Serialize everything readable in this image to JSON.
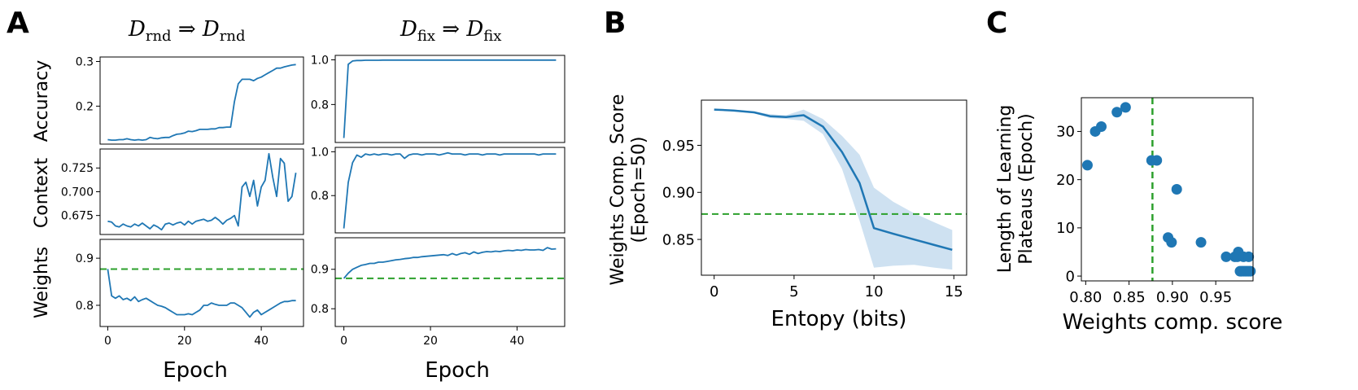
{
  "panels": {
    "A": "A",
    "B": "B",
    "C": "C"
  },
  "titles": {
    "left": {
      "D1": "D",
      "sub1": "rnd",
      "arrow": " ⇒ ",
      "D2": "D",
      "sub2": "rnd"
    },
    "right": {
      "D1": "D",
      "sub1": "fix",
      "arrow": " ⇒ ",
      "D2": "D",
      "sub2": "fix"
    }
  },
  "colors": {
    "line": "#1f77b4",
    "threshold": "#2ca02c",
    "band": "#a6c8e6"
  },
  "chart_data": [
    {
      "id": "A-rnd-accuracy",
      "type": "line",
      "ylabel": "Accuracy",
      "xlim": [
        -2,
        51
      ],
      "ylim": [
        0.115,
        0.31
      ],
      "yticks": [
        0.2,
        0.3
      ],
      "ytick_labels": [
        "0.2",
        "0.3"
      ],
      "xticks": [],
      "x_start": 0,
      "values": [
        0.125,
        0.124,
        0.124,
        0.125,
        0.125,
        0.127,
        0.125,
        0.124,
        0.125,
        0.124,
        0.125,
        0.13,
        0.128,
        0.127,
        0.129,
        0.13,
        0.13,
        0.134,
        0.137,
        0.138,
        0.14,
        0.144,
        0.143,
        0.145,
        0.148,
        0.148,
        0.148,
        0.149,
        0.149,
        0.152,
        0.152,
        0.153,
        0.153,
        0.21,
        0.25,
        0.26,
        0.26,
        0.26,
        0.257,
        0.262,
        0.265,
        0.27,
        0.275,
        0.28,
        0.285,
        0.285,
        0.288,
        0.29,
        0.292,
        0.293
      ]
    },
    {
      "id": "A-rnd-context",
      "type": "line",
      "ylabel": "Context",
      "xlim": [
        -2,
        51
      ],
      "ylim": [
        0.655,
        0.745
      ],
      "yticks": [
        0.675,
        0.7,
        0.725
      ],
      "ytick_labels": [
        "0.675",
        "0.700",
        "0.725"
      ],
      "xticks": [],
      "x_start": 0,
      "values": [
        0.669,
        0.668,
        0.664,
        0.663,
        0.666,
        0.664,
        0.663,
        0.666,
        0.664,
        0.667,
        0.664,
        0.661,
        0.665,
        0.663,
        0.66,
        0.666,
        0.667,
        0.665,
        0.667,
        0.668,
        0.665,
        0.669,
        0.666,
        0.669,
        0.67,
        0.671,
        0.669,
        0.67,
        0.673,
        0.67,
        0.666,
        0.67,
        0.672,
        0.675,
        0.664,
        0.705,
        0.71,
        0.695,
        0.712,
        0.685,
        0.705,
        0.712,
        0.74,
        0.715,
        0.695,
        0.735,
        0.73,
        0.69,
        0.695,
        0.72
      ]
    },
    {
      "id": "A-rnd-weights",
      "type": "line",
      "ylabel": "Weights",
      "xlim": [
        -2,
        51
      ],
      "ylim": [
        0.755,
        0.94
      ],
      "yticks": [
        0.8,
        0.9
      ],
      "ytick_labels": [
        "0.8",
        "0.9"
      ],
      "xticks": [
        0,
        20,
        40
      ],
      "xtick_labels": [
        "0",
        "20",
        "40"
      ],
      "threshold": 0.877,
      "x_start": 0,
      "values": [
        0.877,
        0.82,
        0.815,
        0.82,
        0.812,
        0.815,
        0.81,
        0.818,
        0.808,
        0.812,
        0.815,
        0.81,
        0.805,
        0.8,
        0.798,
        0.795,
        0.79,
        0.785,
        0.78,
        0.78,
        0.78,
        0.782,
        0.78,
        0.785,
        0.79,
        0.8,
        0.8,
        0.805,
        0.802,
        0.8,
        0.8,
        0.8,
        0.805,
        0.805,
        0.8,
        0.795,
        0.785,
        0.775,
        0.785,
        0.79,
        0.78,
        0.785,
        0.79,
        0.795,
        0.8,
        0.805,
        0.808,
        0.808,
        0.81,
        0.81
      ]
    },
    {
      "id": "A-fix-accuracy",
      "type": "line",
      "xlim": [
        -2,
        51
      ],
      "ylim": [
        0.63,
        1.02
      ],
      "yticks": [
        0.8,
        1.0
      ],
      "ytick_labels": [
        "0.8",
        "1.0"
      ],
      "xticks": [],
      "x_start": 0,
      "values": [
        0.65,
        0.98,
        0.995,
        0.997,
        0.997,
        0.998,
        0.998,
        0.998,
        0.998,
        0.999,
        0.999,
        0.999,
        0.999,
        0.999,
        0.999,
        0.999,
        0.999,
        0.999,
        0.999,
        0.999,
        0.999,
        0.999,
        0.999,
        0.999,
        0.999,
        0.999,
        0.999,
        0.999,
        0.999,
        0.999,
        0.999,
        0.999,
        0.999,
        0.999,
        0.999,
        0.999,
        0.999,
        0.999,
        0.999,
        0.999,
        0.999,
        0.999,
        0.999,
        0.999,
        0.999,
        0.999,
        0.999,
        0.999,
        0.999,
        0.999
      ]
    },
    {
      "id": "A-fix-context",
      "type": "line",
      "xlim": [
        -2,
        51
      ],
      "ylim": [
        0.63,
        1.02
      ],
      "yticks": [
        0.8,
        1.0
      ],
      "ytick_labels": [
        "0.8",
        "1.0"
      ],
      "xticks": [],
      "x_start": 0,
      "values": [
        0.65,
        0.86,
        0.95,
        0.985,
        0.975,
        0.99,
        0.985,
        0.99,
        0.985,
        0.99,
        0.99,
        0.985,
        0.99,
        0.99,
        0.97,
        0.985,
        0.99,
        0.99,
        0.985,
        0.99,
        0.99,
        0.99,
        0.985,
        0.99,
        0.995,
        0.99,
        0.99,
        0.99,
        0.985,
        0.99,
        0.99,
        0.99,
        0.985,
        0.99,
        0.99,
        0.99,
        0.985,
        0.99,
        0.99,
        0.99,
        0.99,
        0.99,
        0.99,
        0.99,
        0.99,
        0.985,
        0.99,
        0.99,
        0.99,
        0.99
      ]
    },
    {
      "id": "A-fix-weights",
      "type": "line",
      "xlim": [
        -2,
        51
      ],
      "ylim": [
        0.755,
        0.98
      ],
      "yticks": [
        0.8,
        0.9
      ],
      "ytick_labels": [
        "0.8",
        "0.9"
      ],
      "xticks": [
        0,
        20,
        40
      ],
      "xtick_labels": [
        "0",
        "20",
        "40"
      ],
      "threshold": 0.877,
      "x_start": 0,
      "values": [
        0.877,
        0.89,
        0.9,
        0.905,
        0.91,
        0.912,
        0.915,
        0.915,
        0.918,
        0.918,
        0.92,
        0.922,
        0.924,
        0.925,
        0.927,
        0.928,
        0.93,
        0.93,
        0.932,
        0.933,
        0.934,
        0.935,
        0.936,
        0.937,
        0.935,
        0.94,
        0.936,
        0.94,
        0.942,
        0.938,
        0.944,
        0.94,
        0.943,
        0.945,
        0.944,
        0.946,
        0.945,
        0.947,
        0.948,
        0.947,
        0.949,
        0.948,
        0.95,
        0.949,
        0.949,
        0.95,
        0.948,
        0.955,
        0.951,
        0.952
      ]
    },
    {
      "id": "B",
      "type": "line",
      "xlabel": "Entopy (bits)",
      "ylabel_lines": [
        "Weights Comp. Score",
        "(Epoch=50)"
      ],
      "xlim": [
        -0.8,
        15.8
      ],
      "ylim": [
        0.812,
        0.998
      ],
      "xticks": [
        0,
        5,
        10,
        15
      ],
      "xtick_labels": [
        "0",
        "5",
        "10",
        "15"
      ],
      "yticks": [
        0.85,
        0.9,
        0.95
      ],
      "ytick_labels": [
        "0.85",
        "0.90",
        "0.95"
      ],
      "threshold": 0.877,
      "x": [
        0,
        1.2,
        2.5,
        3.5,
        4.5,
        5.6,
        6.8,
        8.0,
        9.1,
        10.0,
        11.2,
        12.5,
        13.8,
        14.9
      ],
      "y": [
        0.988,
        0.987,
        0.985,
        0.981,
        0.98,
        0.982,
        0.97,
        0.943,
        0.91,
        0.862,
        0.856,
        0.85,
        0.844,
        0.839
      ],
      "y_lower": [
        0.988,
        0.986,
        0.984,
        0.979,
        0.978,
        0.976,
        0.962,
        0.925,
        0.87,
        0.82,
        0.822,
        0.823,
        0.82,
        0.818
      ],
      "y_upper": [
        0.988,
        0.988,
        0.986,
        0.983,
        0.982,
        0.988,
        0.978,
        0.96,
        0.94,
        0.905,
        0.89,
        0.878,
        0.868,
        0.86
      ]
    },
    {
      "id": "C",
      "type": "scatter",
      "xlabel": "Weights comp. score",
      "ylabel_lines": [
        "Length of Learning",
        "Plateaus (Epoch)"
      ],
      "xlim": [
        0.795,
        0.993
      ],
      "ylim": [
        -1,
        37
      ],
      "xticks": [
        0.8,
        0.85,
        0.9,
        0.95
      ],
      "xtick_labels": [
        "0.80",
        "0.85",
        "0.90",
        "0.95"
      ],
      "yticks": [
        0,
        10,
        20,
        30
      ],
      "ytick_labels": [
        "0",
        "10",
        "20",
        "30"
      ],
      "threshold_x": 0.877,
      "x": [
        0.802,
        0.811,
        0.818,
        0.836,
        0.846,
        0.876,
        0.882,
        0.905,
        0.895,
        0.899,
        0.933,
        0.962,
        0.972,
        0.976,
        0.975,
        0.982,
        0.988,
        0.98,
        0.982,
        0.984,
        0.986,
        0.988,
        0.99,
        0.978
      ],
      "y": [
        23,
        30,
        31,
        34,
        35,
        24,
        24,
        18,
        8,
        7,
        7,
        4,
        4,
        5,
        4,
        4,
        4,
        1,
        1,
        1,
        1,
        1,
        1,
        1
      ]
    }
  ],
  "axis_labels": {
    "A_left_xlabel": "Epoch",
    "A_right_xlabel": "Epoch",
    "A_row_labels": [
      "Accuracy",
      "Context",
      "Weights"
    ]
  }
}
